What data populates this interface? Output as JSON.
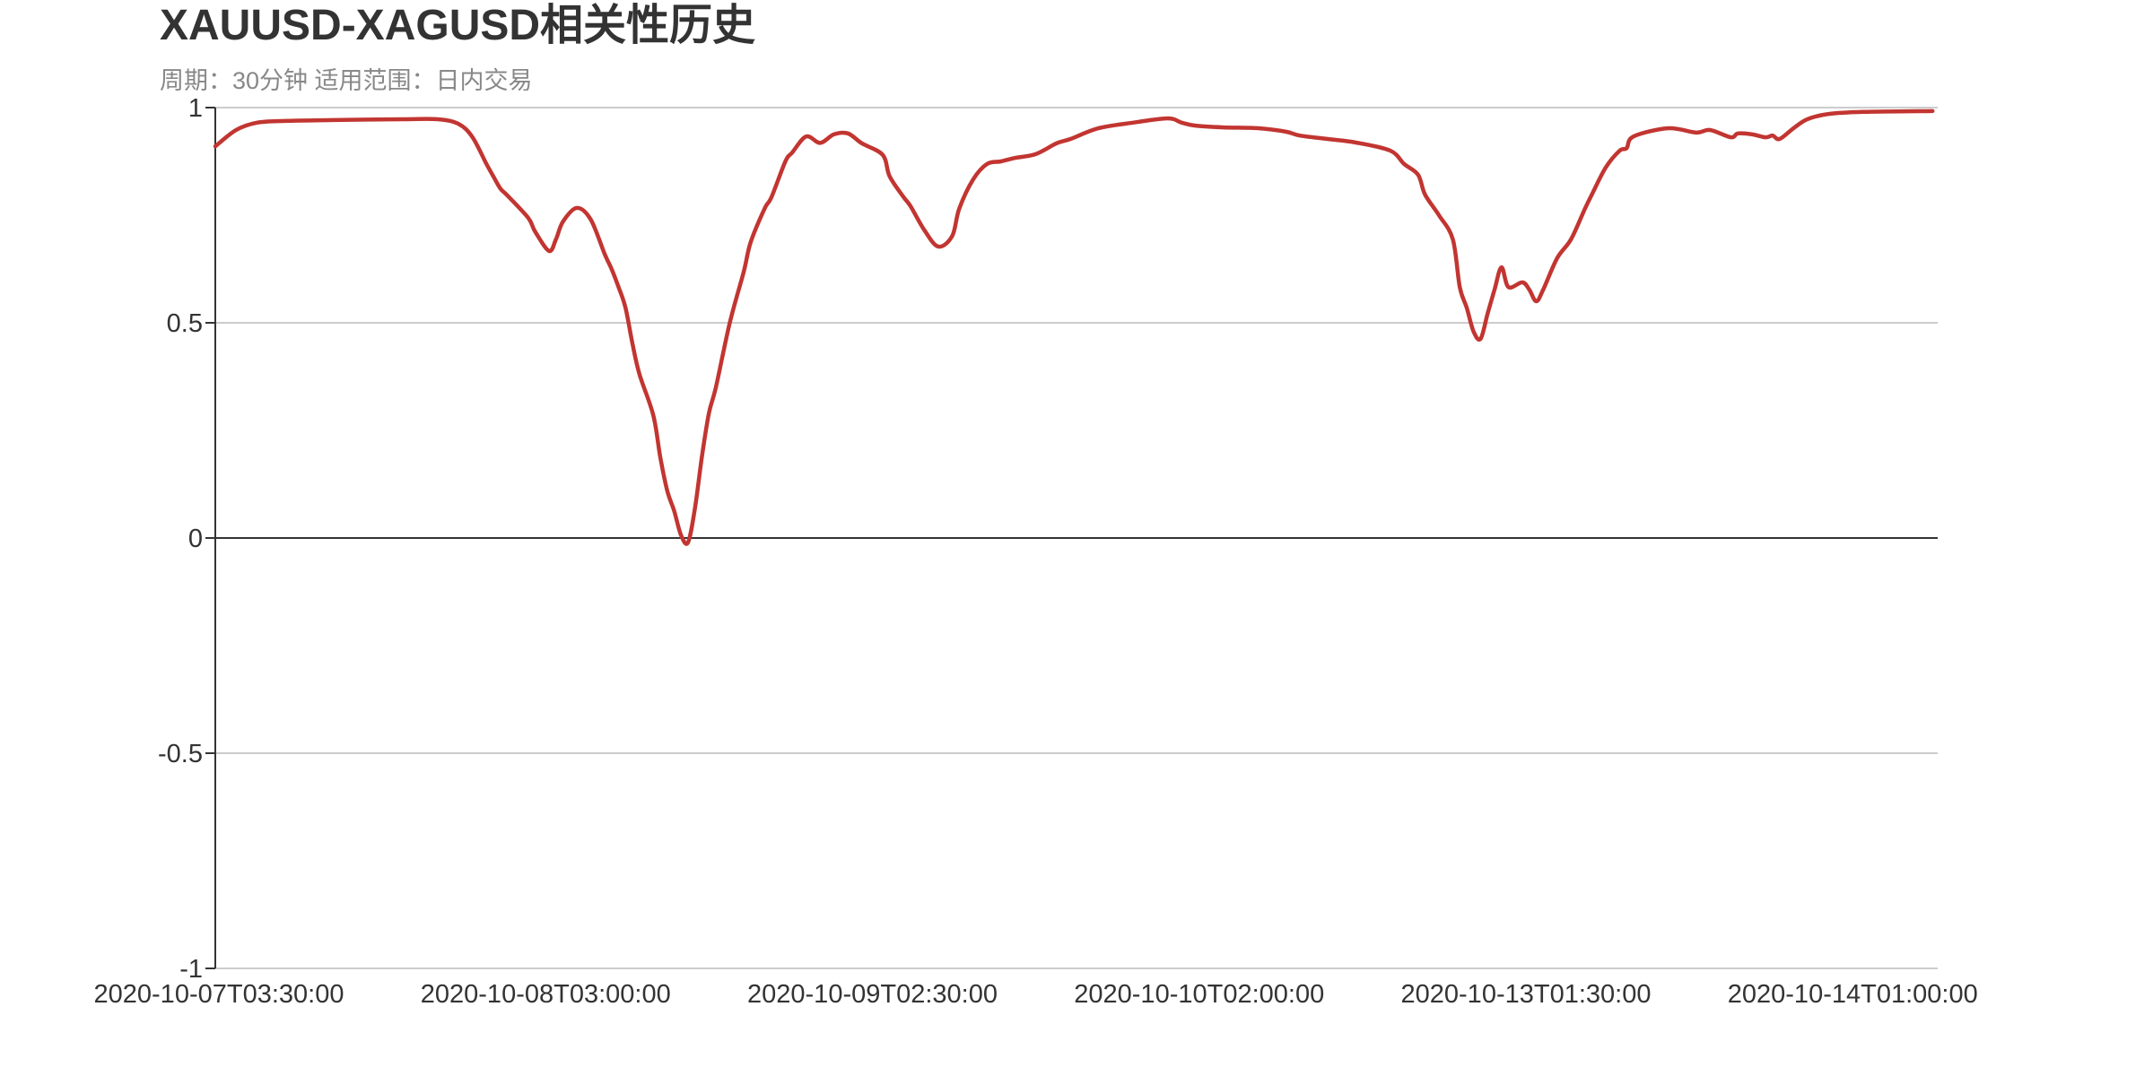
{
  "chart_data": {
    "type": "line",
    "title": "XAUUSD-XAGUSD相关性历史",
    "subtitle": "周期：30分钟 适用范围：日内交易",
    "xlabel": "",
    "ylabel": "",
    "ylim": [
      -1,
      1
    ],
    "y_ticks": [
      "1",
      "0.5",
      "0",
      "-0.5",
      "-1"
    ],
    "y_tick_values": [
      1,
      0.5,
      0,
      -0.5,
      -1
    ],
    "x_tick_labels": [
      "2020-10-07T03:30:00",
      "2020-10-08T03:00:00",
      "2020-10-09T02:30:00",
      "2020-10-10T02:00:00",
      "2020-10-13T01:30:00",
      "2020-10-14T01:00:00"
    ],
    "x_tick_indices": [
      0,
      47,
      94,
      141,
      188,
      235
    ],
    "x_count": 248,
    "grid": true,
    "line_color": "#c23531",
    "series": [
      {
        "points": [
          [
            0,
            0.91
          ],
          [
            3,
            0.948
          ],
          [
            6,
            0.965
          ],
          [
            10,
            0.969
          ],
          [
            17,
            0.971
          ],
          [
            27,
            0.973
          ],
          [
            32,
            0.973
          ],
          [
            35,
            0.962
          ],
          [
            37,
            0.931
          ],
          [
            39,
            0.869
          ],
          [
            40,
            0.84
          ],
          [
            41,
            0.812
          ],
          [
            42,
            0.796
          ],
          [
            45,
            0.744
          ],
          [
            46,
            0.712
          ],
          [
            48,
            0.667
          ],
          [
            49,
            0.694
          ],
          [
            50,
            0.735
          ],
          [
            52,
            0.767
          ],
          [
            54,
            0.74
          ],
          [
            56,
            0.66
          ],
          [
            57,
            0.625
          ],
          [
            58,
            0.583
          ],
          [
            59,
            0.535
          ],
          [
            60,
            0.452
          ],
          [
            61,
            0.381
          ],
          [
            63,
            0.285
          ],
          [
            64,
            0.188
          ],
          [
            65,
            0.11
          ],
          [
            66,
            0.063
          ],
          [
            67,
            0.006
          ],
          [
            68,
            -0.01
          ],
          [
            69,
            0.07
          ],
          [
            70,
            0.19
          ],
          [
            71,
            0.29
          ],
          [
            72,
            0.35
          ],
          [
            74,
            0.5
          ],
          [
            76,
            0.618
          ],
          [
            77,
            0.687
          ],
          [
            79,
            0.765
          ],
          [
            80,
            0.792
          ],
          [
            82,
            0.875
          ],
          [
            83,
            0.896
          ],
          [
            85,
            0.933
          ],
          [
            87,
            0.918
          ],
          [
            89,
            0.938
          ],
          [
            91,
            0.94
          ],
          [
            93,
            0.917
          ],
          [
            96,
            0.89
          ],
          [
            97,
            0.84
          ],
          [
            99,
            0.792
          ],
          [
            100,
            0.771
          ],
          [
            102,
            0.715
          ],
          [
            104,
            0.677
          ],
          [
            106,
            0.702
          ],
          [
            107,
            0.765
          ],
          [
            109,
            0.833
          ],
          [
            111,
            0.869
          ],
          [
            113,
            0.875
          ],
          [
            115,
            0.883
          ],
          [
            118,
            0.892
          ],
          [
            121,
            0.917
          ],
          [
            123,
            0.927
          ],
          [
            127,
            0.952
          ],
          [
            132,
            0.965
          ],
          [
            137,
            0.975
          ],
          [
            139,
            0.965
          ],
          [
            141,
            0.958
          ],
          [
            145,
            0.954
          ],
          [
            150,
            0.952
          ],
          [
            154,
            0.944
          ],
          [
            156,
            0.935
          ],
          [
            160,
            0.927
          ],
          [
            164,
            0.919
          ],
          [
            169,
            0.9
          ],
          [
            171,
            0.869
          ],
          [
            173,
            0.844
          ],
          [
            174,
            0.798
          ],
          [
            176,
            0.75
          ],
          [
            178,
            0.694
          ],
          [
            179,
            0.583
          ],
          [
            180,
            0.535
          ],
          [
            181,
            0.479
          ],
          [
            182,
            0.463
          ],
          [
            183,
            0.521
          ],
          [
            184,
            0.577
          ],
          [
            185,
            0.629
          ],
          [
            186,
            0.583
          ],
          [
            188,
            0.594
          ],
          [
            189,
            0.577
          ],
          [
            190,
            0.55
          ],
          [
            191,
            0.577
          ],
          [
            193,
            0.65
          ],
          [
            195,
            0.694
          ],
          [
            197,
            0.765
          ],
          [
            198,
            0.798
          ],
          [
            200,
            0.861
          ],
          [
            202,
            0.9
          ],
          [
            203,
            0.906
          ],
          [
            204,
            0.933
          ],
          [
            209,
            0.952
          ],
          [
            213,
            0.942
          ],
          [
            215,
            0.948
          ],
          [
            218,
            0.931
          ],
          [
            219,
            0.94
          ],
          [
            221,
            0.938
          ],
          [
            223,
            0.931
          ],
          [
            224,
            0.935
          ],
          [
            225,
            0.927
          ],
          [
            227,
            0.952
          ],
          [
            229,
            0.973
          ],
          [
            232,
            0.985
          ],
          [
            237,
            0.99
          ],
          [
            247,
            0.992
          ]
        ]
      }
    ]
  }
}
